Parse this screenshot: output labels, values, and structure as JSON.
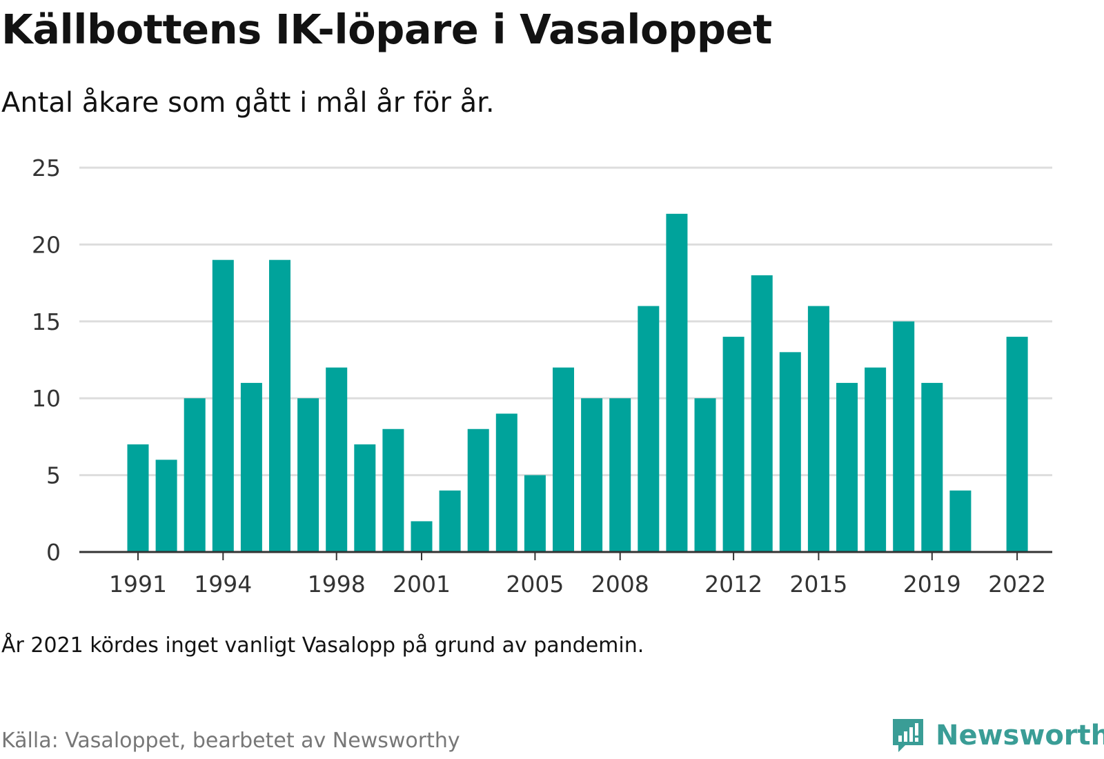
{
  "header": {
    "title": "Källbottens IK-löpare i Vasaloppet",
    "subtitle": "Antal åkare som gått i mål år för år."
  },
  "footer": {
    "note": "År 2021 kördes inget vanligt Vasalopp på grund av pandemin.",
    "source": "Källa: Vasaloppet, bearbetet av Newsworthy",
    "brand": "Newsworthy"
  },
  "colors": {
    "bar": "#00a39b",
    "grid": "#dddddd",
    "axis": "#333333",
    "brand": "#3a9d96"
  },
  "chart_data": {
    "type": "bar",
    "title": "Källbottens IK-löpare i Vasaloppet",
    "subtitle": "Antal åkare som gått i mål år för år.",
    "categories": [
      1991,
      1992,
      1993,
      1994,
      1995,
      1996,
      1997,
      1998,
      1999,
      2000,
      2001,
      2002,
      2003,
      2004,
      2005,
      2006,
      2007,
      2008,
      2009,
      2010,
      2011,
      2012,
      2013,
      2014,
      2015,
      2016,
      2017,
      2018,
      2019,
      2020,
      2021,
      2022
    ],
    "values": [
      7,
      6,
      10,
      19,
      11,
      19,
      10,
      12,
      7,
      8,
      2,
      4,
      8,
      9,
      5,
      12,
      10,
      10,
      16,
      22,
      10,
      14,
      18,
      13,
      16,
      11,
      12,
      15,
      11,
      4,
      null,
      14
    ],
    "x_tick_labels": [
      "1991",
      "1994",
      "1998",
      "2001",
      "2005",
      "2008",
      "2012",
      "2015",
      "2019",
      "2022"
    ],
    "y_ticks": [
      0,
      5,
      10,
      15,
      20,
      25
    ],
    "ylim": [
      0,
      25
    ],
    "xlabel": "",
    "ylabel": "",
    "grid": true,
    "legend": "none"
  }
}
